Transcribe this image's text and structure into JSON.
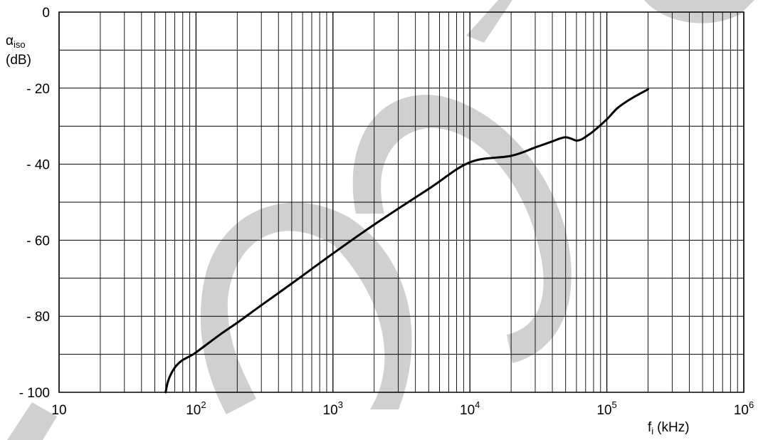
{
  "chart_data": {
    "type": "line",
    "x_scale": "log",
    "xlim": [
      10,
      1000000
    ],
    "ylim": [
      -100,
      0
    ],
    "grid": true,
    "y_ticks": [
      {
        "value": 0,
        "label": "0"
      },
      {
        "value": -20,
        "label": "- 20"
      },
      {
        "value": -40,
        "label": "- 40"
      },
      {
        "value": -60,
        "label": "- 60"
      },
      {
        "value": -80,
        "label": "- 80"
      },
      {
        "value": -100,
        "label": "- 100"
      }
    ],
    "y_gridlines": [
      0,
      -10,
      -20,
      -30,
      -40,
      -50,
      -60,
      -70,
      -80,
      -90,
      -100
    ],
    "x_ticks": [
      {
        "value": 10,
        "base": "10",
        "exponent": ""
      },
      {
        "value": 100,
        "base": "10",
        "exponent": "2"
      },
      {
        "value": 1000,
        "base": "10",
        "exponent": "3"
      },
      {
        "value": 10000,
        "base": "10",
        "exponent": "4"
      },
      {
        "value": 100000,
        "base": "10",
        "exponent": "5"
      },
      {
        "value": 1000000,
        "base": "10",
        "exponent": "6"
      }
    ],
    "ylabel": {
      "symbol": "α",
      "subscript": "iso",
      "unit": "(dB)"
    },
    "xlabel": {
      "symbol": "f",
      "subscript": "i",
      "unit": "(kHz)"
    },
    "series": [
      {
        "color": "#000000",
        "x": [
          60,
          62,
          65,
          70,
          75,
          80,
          90,
          100,
          150,
          200,
          300,
          500,
          1000,
          2000,
          5000,
          10000,
          20000,
          30000,
          40000,
          45000,
          50000,
          55000,
          60000,
          65000,
          70000,
          80000,
          100000,
          120000,
          150000,
          200000
        ],
        "y": [
          -100,
          -97.5,
          -95.5,
          -93.5,
          -92.3,
          -91.5,
          -90.5,
          -89.5,
          -84.8,
          -81.7,
          -77.1,
          -71.4,
          -63.5,
          -55.9,
          -46.5,
          -39.5,
          -37.8,
          -35.6,
          -34.0,
          -33.3,
          -32.9,
          -33.3,
          -33.8,
          -33.5,
          -32.8,
          -31.3,
          -28.2,
          -25.2,
          -22.8,
          -20.3
        ]
      }
    ]
  },
  "watermark": {
    "color": "#c8c8c8"
  }
}
